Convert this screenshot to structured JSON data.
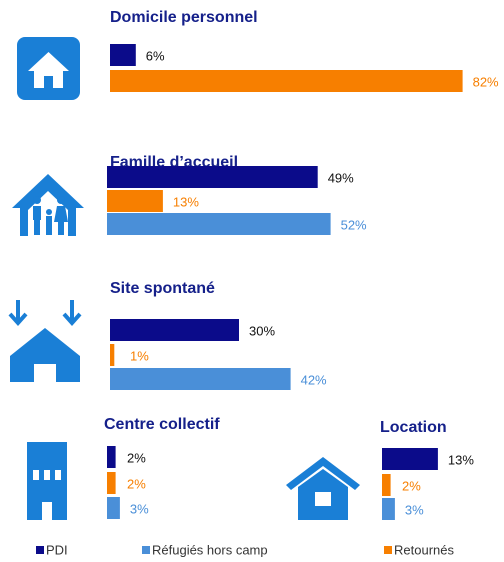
{
  "chart_data": {
    "type": "bar",
    "categories": [
      "Domicile personnel",
      "Famille d’accueil",
      "Site spontané",
      "Centre collectif",
      "Location"
    ],
    "series": [
      {
        "name": "PDI",
        "color": "#0b0b8a",
        "values": [
          6,
          49,
          30,
          2,
          13
        ],
        "value_labels": [
          "6%",
          "49%",
          "30%",
          "2%",
          "13%"
        ]
      },
      {
        "name": "Réfugiés hors camp",
        "color": "#4a8fd8",
        "values": [
          null,
          52,
          42,
          3,
          3
        ],
        "value_labels": [
          null,
          "52%",
          "42%",
          "3%",
          "3%"
        ]
      },
      {
        "name": "Retournés",
        "color": "#f77f00",
        "values": [
          82,
          13,
          1,
          2,
          2
        ],
        "value_labels": [
          "82%",
          "13%",
          "1%",
          "2%",
          "2%"
        ]
      }
    ],
    "legend": "bottom"
  }
}
